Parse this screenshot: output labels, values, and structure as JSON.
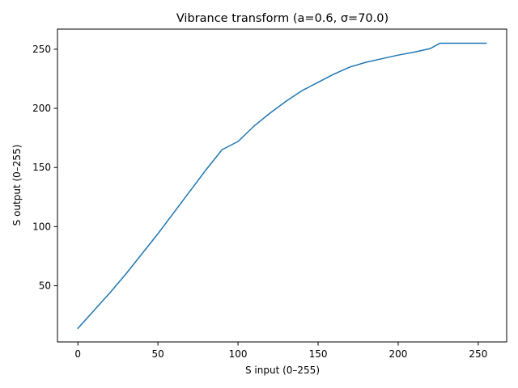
{
  "chart_data": {
    "type": "line",
    "title": "Vibrance transform (a=0.6, σ=70.0)",
    "xlabel": "S input (0–255)",
    "ylabel": "S output (0–255)",
    "xlim": [
      -12.75,
      267.75
    ],
    "ylim": [
      2.5,
      267.0
    ],
    "xticks": [
      0,
      50,
      100,
      150,
      200,
      250
    ],
    "yticks": [
      50,
      100,
      150,
      200,
      250
    ],
    "xtick_labels": [
      "0",
      "50",
      "100",
      "150",
      "200",
      "250"
    ],
    "ytick_labels": [
      "50",
      "100",
      "150",
      "200",
      "250"
    ],
    "grid": false,
    "legend": "none",
    "series": [
      {
        "color": "#1f77b4",
        "x": [
          0,
          10,
          20,
          30,
          40,
          50,
          60,
          70,
          80,
          90,
          100,
          110,
          120,
          130,
          140,
          150,
          160,
          170,
          180,
          190,
          200,
          210,
          220,
          226,
          235,
          245,
          255
        ],
        "y": [
          14,
          29,
          44,
          60,
          77,
          94,
          112,
          130,
          148,
          165,
          172,
          185,
          196,
          206,
          215,
          222,
          229,
          235,
          239,
          242,
          245,
          247.5,
          250.5,
          255,
          255,
          255,
          255
        ]
      }
    ]
  }
}
